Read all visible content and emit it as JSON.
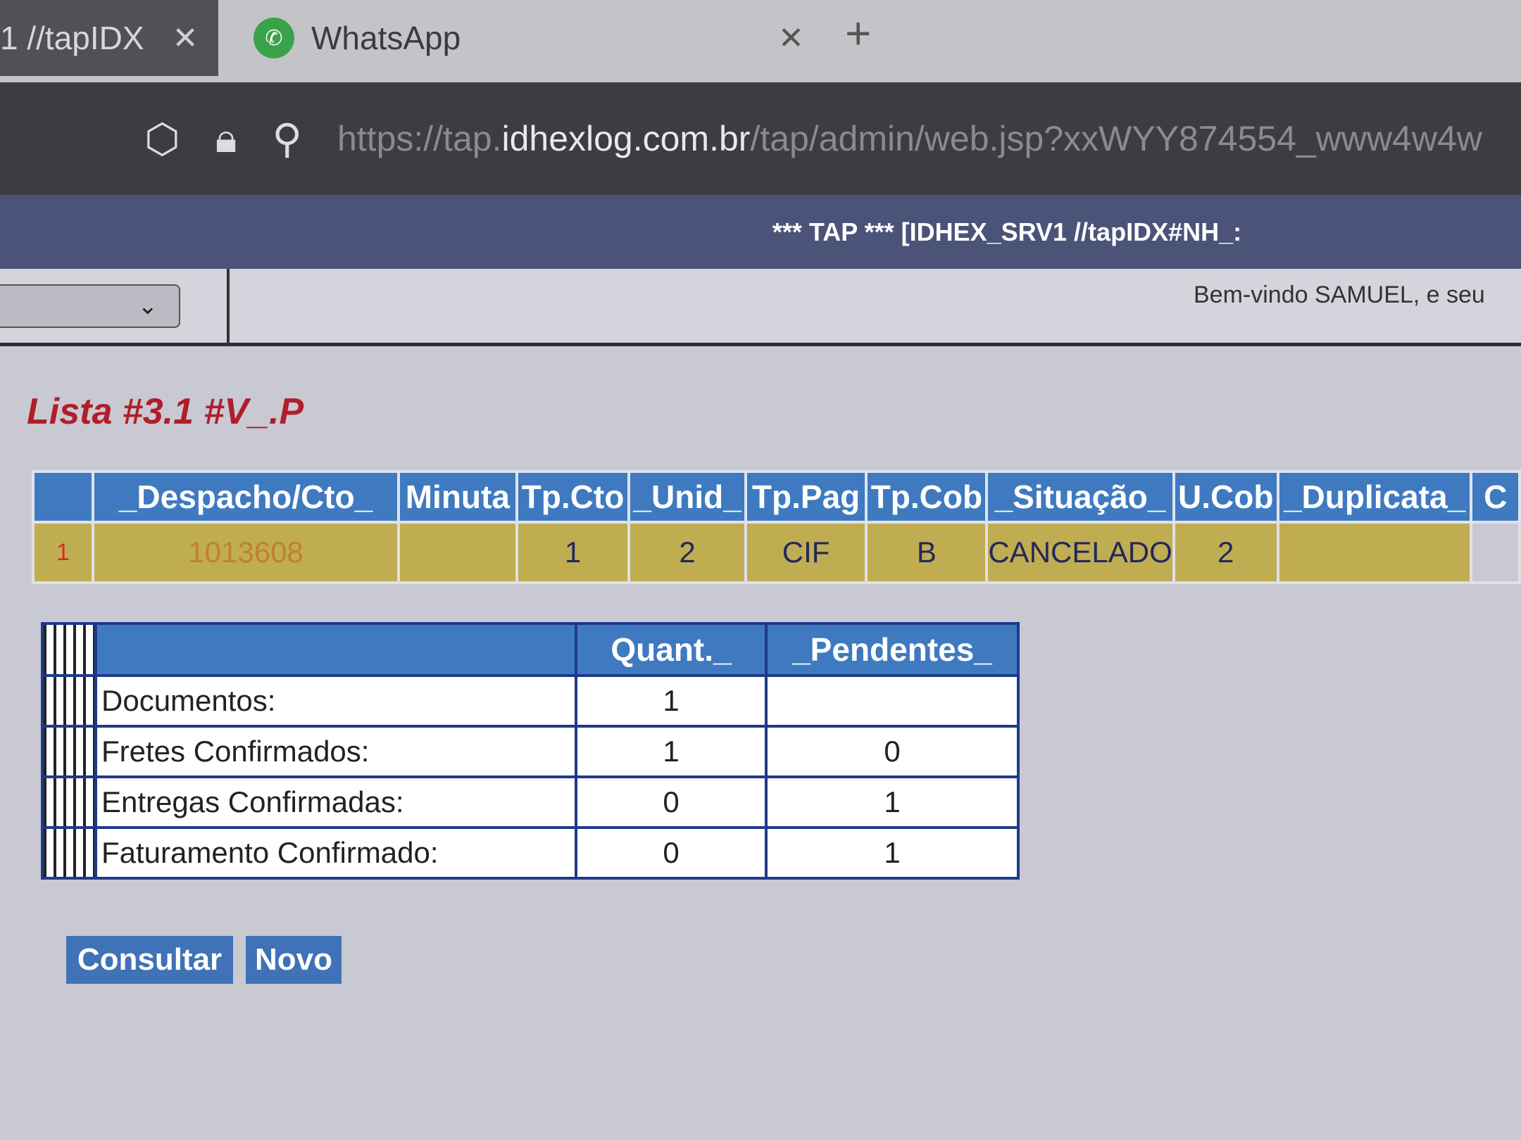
{
  "browser": {
    "tabs": [
      {
        "label": "1 //tapIDX",
        "active": true
      },
      {
        "label": "WhatsApp",
        "active": false
      }
    ],
    "url_prefix": "https://tap.",
    "url_domain": "idhexlog.com.br",
    "url_path": "/tap/admin/web.jsp?xxWYY874554_www4w4w"
  },
  "banner": {
    "title": "*** TAP *** [IDHEX_SRV1 //tapIDX#NH_:"
  },
  "toolbar": {
    "select_value": "",
    "welcome": "Bem-vindo SAMUEL, e seu"
  },
  "page": {
    "title": "Lista #3.1 #V_.P"
  },
  "list": {
    "headers": [
      "",
      "_Despacho/Cto_",
      "Minuta",
      "Tp.Cto",
      "_Unid_",
      "Tp.Pag",
      "Tp.Cob",
      "_Situação_",
      "U.Cob",
      "_Duplicata_",
      "C"
    ],
    "rows": [
      [
        "1",
        "1013608",
        "",
        "1",
        "2",
        "CIF",
        "B",
        "CANCELADO",
        "2",
        "",
        ""
      ]
    ]
  },
  "summary": {
    "headers": [
      "",
      "Quant._",
      "_Pendentes_"
    ],
    "rows": [
      {
        "label": "Documentos:",
        "quant": "1",
        "pend": ""
      },
      {
        "label": "Fretes Confirmados:",
        "quant": "1",
        "pend": "0"
      },
      {
        "label": "Entregas Confirmadas:",
        "quant": "0",
        "pend": "1"
      },
      {
        "label": "Faturamento Confirmado:",
        "quant": "0",
        "pend": "1"
      }
    ]
  },
  "buttons": {
    "consultar": "Consultar",
    "novo": "Novo"
  },
  "colors": {
    "header_blue": "#3f7ac0",
    "row_gold": "#c0ad52",
    "title_red": "#b01e2a",
    "banner": "#4b5379"
  }
}
